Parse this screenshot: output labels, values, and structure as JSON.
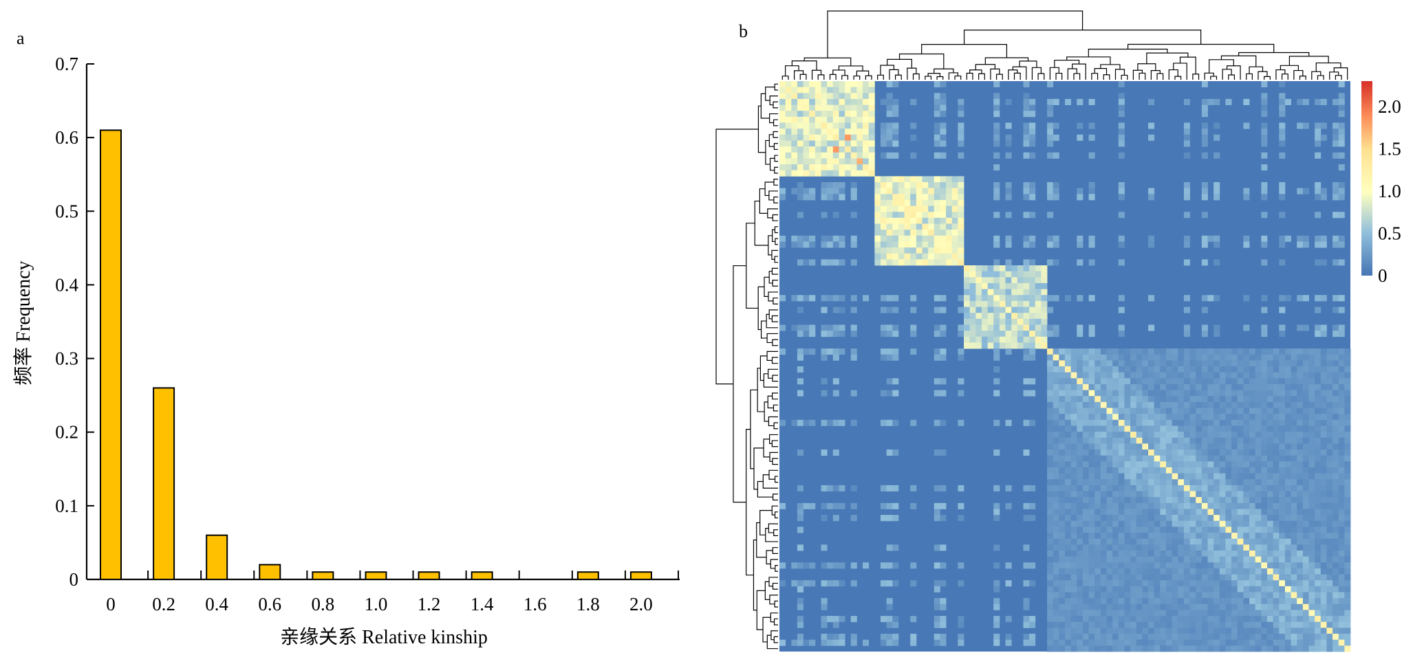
{
  "panel_a_label": "a",
  "panel_b_label": "b",
  "colors": {
    "bar_fill": "#FFC000",
    "bar_stroke": "#000000",
    "heat_low": "#4575B4",
    "heat_mid": "#FFFFBF",
    "heat_high": "#D73027"
  },
  "chart_data": [
    {
      "type": "bar",
      "categories": [
        "0",
        "0.2",
        "0.4",
        "0.6",
        "0.8",
        "1.0",
        "1.2",
        "1.4",
        "1.6",
        "1.8",
        "2.0"
      ],
      "values": [
        0.61,
        0.26,
        0.06,
        0.02,
        0.01,
        0.01,
        0.01,
        0.01,
        0,
        0.01,
        0.01
      ],
      "xlabel": "亲缘关系 Relative kinship",
      "ylabel": "频率 Frequency",
      "ylim": [
        0,
        0.7
      ],
      "yticks": [
        "0",
        "0.1",
        "0.2",
        "0.3",
        "0.4",
        "0.5",
        "0.6",
        "0.7"
      ],
      "grid": false
    },
    {
      "type": "heatmap",
      "description_of_blocks": "clustered kinship matrix with dendrograms on top and left",
      "colorbar_ticks": [
        "0",
        "0.5",
        "1.0",
        "1.5",
        "2.0"
      ],
      "colorbar_range": [
        0,
        2.3
      ],
      "clusters_relative_size": [
        0.17,
        0.15,
        0.15,
        0.53
      ],
      "cluster_within_kinship": [
        1.0,
        1.05,
        0.8,
        0.45
      ],
      "grid": false
    }
  ]
}
